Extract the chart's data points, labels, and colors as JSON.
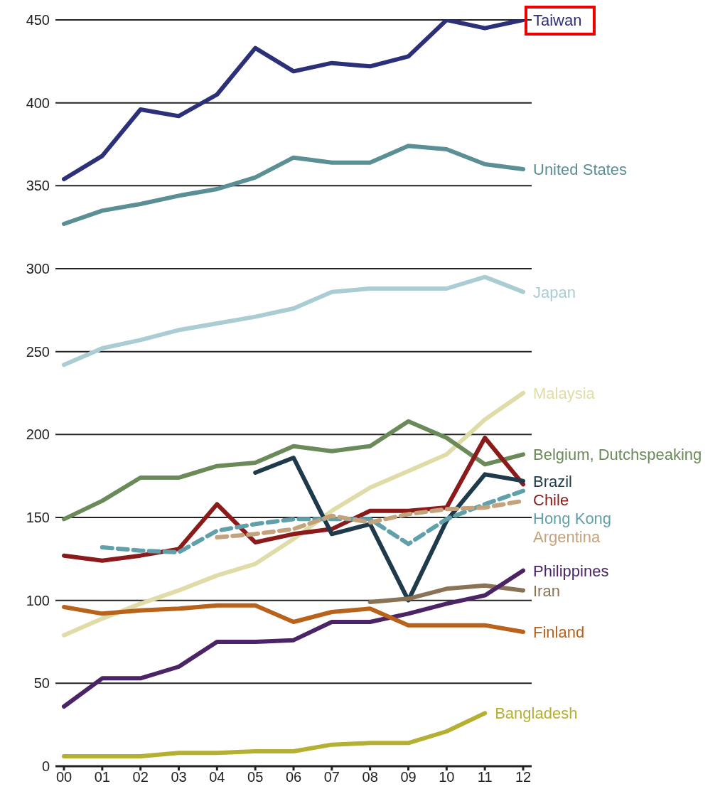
{
  "chart_data": {
    "type": "line",
    "categories": [
      "00",
      "01",
      "02",
      "03",
      "04",
      "05",
      "06",
      "07",
      "08",
      "09",
      "10",
      "11",
      "12"
    ],
    "ylim": [
      0,
      450
    ],
    "yticks": [
      0,
      50,
      100,
      150,
      200,
      250,
      300,
      350,
      400,
      450
    ],
    "grid": "y",
    "marker": "none",
    "series": [
      {
        "name": "Taiwan",
        "color": "#2b3079",
        "values": [
          354,
          368,
          396,
          392,
          405,
          433,
          419,
          424,
          422,
          428,
          450,
          445,
          450
        ]
      },
      {
        "name": "United States",
        "color": "#5a8f96",
        "values": [
          327,
          335,
          339,
          344,
          348,
          355,
          367,
          364,
          364,
          374,
          372,
          363,
          360
        ]
      },
      {
        "name": "Japan",
        "color": "#a9cdd3",
        "values": [
          242,
          252,
          257,
          263,
          267,
          271,
          276,
          286,
          288,
          288,
          288,
          295,
          286
        ]
      },
      {
        "name": "Malaysia",
        "color": "#e0dca8",
        "values": [
          79,
          89,
          98,
          106,
          115,
          122,
          137,
          154,
          168,
          178,
          188,
          209,
          225
        ]
      },
      {
        "name": "Belgium, Dutchspeaking",
        "color": "#6b8a5a",
        "values": [
          149,
          160,
          174,
          174,
          181,
          183,
          193,
          190,
          193,
          208,
          198,
          182,
          188
        ]
      },
      {
        "name": "Chile",
        "color": "#8b1a1a",
        "values": [
          127,
          124,
          127,
          131,
          158,
          135,
          140,
          143,
          154,
          154,
          156,
          198,
          170
        ]
      },
      {
        "name": "Brazil",
        "color": "#1f3a4a",
        "values": [
          null,
          null,
          null,
          null,
          null,
          177,
          186,
          140,
          146,
          100,
          148,
          176,
          172
        ]
      },
      {
        "name": "Hong Kong",
        "color": "#5fa0aa",
        "line_style": "dashed",
        "values": [
          null,
          132,
          130,
          129,
          142,
          146,
          149,
          149,
          149,
          134,
          149,
          158,
          166
        ]
      },
      {
        "name": "Argentina",
        "color": "#c4a27c",
        "line_style": "dashed",
        "values": [
          null,
          null,
          null,
          null,
          138,
          140,
          143,
          151,
          147,
          152,
          155,
          156,
          160
        ]
      },
      {
        "name": "Iran",
        "color": "#8a7355",
        "values": [
          null,
          null,
          null,
          null,
          null,
          null,
          null,
          null,
          99,
          101,
          107,
          109,
          106
        ]
      },
      {
        "name": "Philippines",
        "color": "#4b2466",
        "values": [
          36,
          53,
          53,
          60,
          75,
          75,
          76,
          87,
          87,
          92,
          98,
          103,
          118
        ]
      },
      {
        "name": "Finland",
        "color": "#b8621b",
        "values": [
          96,
          92,
          94,
          95,
          97,
          97,
          87,
          93,
          95,
          85,
          85,
          85,
          81
        ]
      },
      {
        "name": "Bangladesh",
        "color": "#b5b032",
        "values": [
          6,
          6,
          6,
          8,
          8,
          9,
          9,
          13,
          14,
          14,
          21,
          32,
          null
        ]
      }
    ]
  }
}
